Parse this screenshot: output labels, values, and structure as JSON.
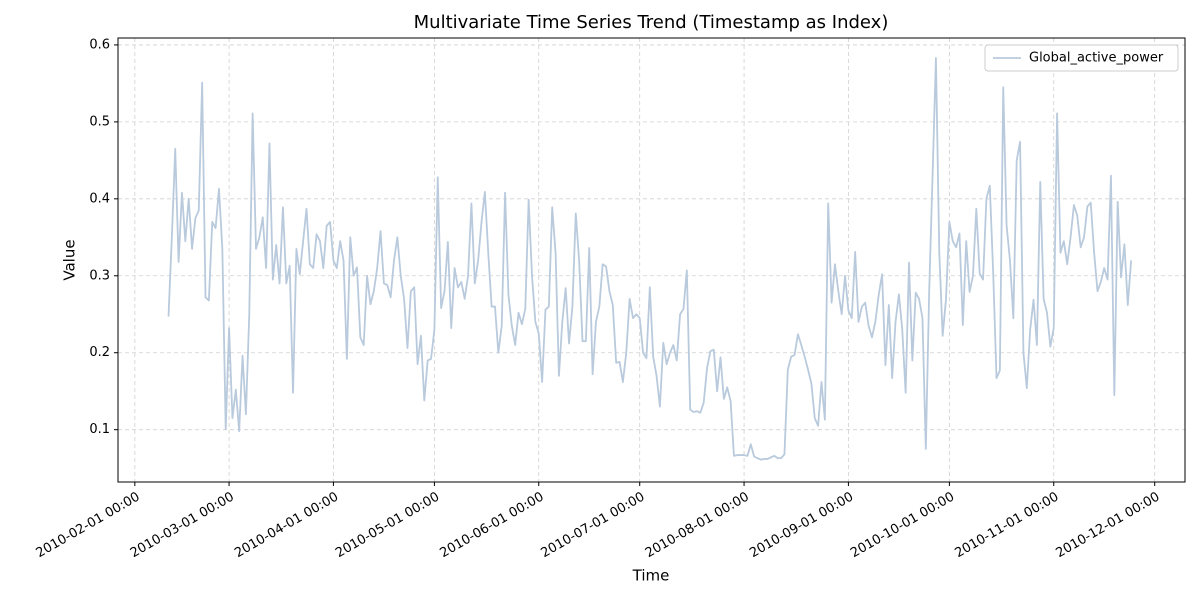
{
  "chart_data": {
    "type": "line",
    "title": "Multivariate Time Series Trend (Timestamp as Index)",
    "x_label": "Time",
    "y_label": "Value",
    "x": [
      "2010-02-11",
      "2010-02-12",
      "2010-02-13",
      "2010-02-14",
      "2010-02-15",
      "2010-02-16",
      "2010-02-17",
      "2010-02-18",
      "2010-02-19",
      "2010-02-20",
      "2010-02-21",
      "2010-02-22",
      "2010-02-23",
      "2010-02-24",
      "2010-02-25",
      "2010-02-26",
      "2010-02-27",
      "2010-02-28",
      "2010-03-01",
      "2010-03-02",
      "2010-03-03",
      "2010-03-04",
      "2010-03-05",
      "2010-03-06",
      "2010-03-07",
      "2010-03-08",
      "2010-03-09",
      "2010-03-10",
      "2010-03-11",
      "2010-03-12",
      "2010-03-13",
      "2010-03-14",
      "2010-03-15",
      "2010-03-16",
      "2010-03-17",
      "2010-03-18",
      "2010-03-19",
      "2010-03-20",
      "2010-03-21",
      "2010-03-22",
      "2010-03-23",
      "2010-03-24",
      "2010-03-25",
      "2010-03-26",
      "2010-03-27",
      "2010-03-28",
      "2010-03-29",
      "2010-03-30",
      "2010-03-31",
      "2010-04-01",
      "2010-04-02",
      "2010-04-03",
      "2010-04-04",
      "2010-04-05",
      "2010-04-06",
      "2010-04-07",
      "2010-04-08",
      "2010-04-09",
      "2010-04-10",
      "2010-04-11",
      "2010-04-12",
      "2010-04-13",
      "2010-04-14",
      "2010-04-15",
      "2010-04-16",
      "2010-04-17",
      "2010-04-18",
      "2010-04-19",
      "2010-04-20",
      "2010-04-21",
      "2010-04-22",
      "2010-04-23",
      "2010-04-24",
      "2010-04-25",
      "2010-04-26",
      "2010-04-27",
      "2010-04-28",
      "2010-04-29",
      "2010-04-30",
      "2010-05-01",
      "2010-05-02",
      "2010-05-03",
      "2010-05-04",
      "2010-05-05",
      "2010-05-06",
      "2010-05-07",
      "2010-05-08",
      "2010-05-09",
      "2010-05-10",
      "2010-05-11",
      "2010-05-12",
      "2010-05-13",
      "2010-05-14",
      "2010-05-15",
      "2010-05-16",
      "2010-05-17",
      "2010-05-18",
      "2010-05-19",
      "2010-05-20",
      "2010-05-21",
      "2010-05-22",
      "2010-05-23",
      "2010-05-24",
      "2010-05-25",
      "2010-05-26",
      "2010-05-27",
      "2010-05-28",
      "2010-05-29",
      "2010-05-30",
      "2010-05-31",
      "2010-06-01",
      "2010-06-02",
      "2010-06-03",
      "2010-06-04",
      "2010-06-05",
      "2010-06-06",
      "2010-06-07",
      "2010-06-08",
      "2010-06-09",
      "2010-06-10",
      "2010-06-11",
      "2010-06-12",
      "2010-06-13",
      "2010-06-14",
      "2010-06-15",
      "2010-06-16",
      "2010-06-17",
      "2010-06-18",
      "2010-06-19",
      "2010-06-20",
      "2010-06-21",
      "2010-06-22",
      "2010-06-23",
      "2010-06-24",
      "2010-06-25",
      "2010-06-26",
      "2010-06-27",
      "2010-06-28",
      "2010-06-29",
      "2010-06-30",
      "2010-07-01",
      "2010-07-02",
      "2010-07-03",
      "2010-07-04",
      "2010-07-05",
      "2010-07-06",
      "2010-07-07",
      "2010-07-08",
      "2010-07-09",
      "2010-07-10",
      "2010-07-11",
      "2010-07-12",
      "2010-07-13",
      "2010-07-14",
      "2010-07-15",
      "2010-07-16",
      "2010-07-17",
      "2010-07-18",
      "2010-07-19",
      "2010-07-20",
      "2010-07-21",
      "2010-07-22",
      "2010-07-23",
      "2010-07-24",
      "2010-07-25",
      "2010-07-26",
      "2010-07-27",
      "2010-07-28",
      "2010-07-29",
      "2010-07-30",
      "2010-07-31",
      "2010-08-01",
      "2010-08-02",
      "2010-08-03",
      "2010-08-04",
      "2010-08-05",
      "2010-08-06",
      "2010-08-07",
      "2010-08-08",
      "2010-08-09",
      "2010-08-10",
      "2010-08-11",
      "2010-08-12",
      "2010-08-13",
      "2010-08-14",
      "2010-08-15",
      "2010-08-16",
      "2010-08-17",
      "2010-08-18",
      "2010-08-19",
      "2010-08-20",
      "2010-08-21",
      "2010-08-22",
      "2010-08-23",
      "2010-08-24",
      "2010-08-25",
      "2010-08-26",
      "2010-08-27",
      "2010-08-28",
      "2010-08-29",
      "2010-08-30",
      "2010-08-31",
      "2010-09-01",
      "2010-09-02",
      "2010-09-03",
      "2010-09-04",
      "2010-09-05",
      "2010-09-06",
      "2010-09-07",
      "2010-09-08",
      "2010-09-09",
      "2010-09-10",
      "2010-09-11",
      "2010-09-12",
      "2010-09-13",
      "2010-09-14",
      "2010-09-15",
      "2010-09-16",
      "2010-09-17",
      "2010-09-18",
      "2010-09-19",
      "2010-09-20",
      "2010-09-21",
      "2010-09-22",
      "2010-09-23",
      "2010-09-24",
      "2010-09-25",
      "2010-09-26",
      "2010-09-27",
      "2010-09-28",
      "2010-09-29",
      "2010-09-30",
      "2010-10-01",
      "2010-10-02",
      "2010-10-03",
      "2010-10-04",
      "2010-10-05",
      "2010-10-06",
      "2010-10-07",
      "2010-10-08",
      "2010-10-09",
      "2010-10-10",
      "2010-10-11",
      "2010-10-12",
      "2010-10-13",
      "2010-10-14",
      "2010-10-15",
      "2010-10-16",
      "2010-10-17",
      "2010-10-18",
      "2010-10-19",
      "2010-10-20",
      "2010-10-21",
      "2010-10-22",
      "2010-10-23",
      "2010-10-24",
      "2010-10-25",
      "2010-10-26",
      "2010-10-27",
      "2010-10-28",
      "2010-10-29",
      "2010-10-30",
      "2010-10-31",
      "2010-11-01",
      "2010-11-02",
      "2010-11-03",
      "2010-11-04",
      "2010-11-05",
      "2010-11-06",
      "2010-11-07",
      "2010-11-08",
      "2010-11-09",
      "2010-11-10",
      "2010-11-11",
      "2010-11-12",
      "2010-11-13",
      "2010-11-14",
      "2010-11-15",
      "2010-11-16",
      "2010-11-17",
      "2010-11-18",
      "2010-11-19",
      "2010-11-20",
      "2010-11-21",
      "2010-11-22",
      "2010-11-23",
      "2010-11-24"
    ],
    "series": [
      {
        "name": "Global_active_power",
        "color": "#b9cadd",
        "values": [
          0.247,
          0.35,
          0.465,
          0.318,
          0.408,
          0.345,
          0.4,
          0.335,
          0.375,
          0.385,
          0.551,
          0.272,
          0.268,
          0.37,
          0.362,
          0.413,
          0.335,
          0.101,
          0.232,
          0.115,
          0.152,
          0.098,
          0.196,
          0.12,
          0.25,
          0.511,
          0.335,
          0.35,
          0.376,
          0.31,
          0.472,
          0.295,
          0.34,
          0.29,
          0.389,
          0.29,
          0.313,
          0.148,
          0.335,
          0.302,
          0.345,
          0.387,
          0.315,
          0.31,
          0.354,
          0.345,
          0.31,
          0.365,
          0.37,
          0.32,
          0.31,
          0.345,
          0.32,
          0.192,
          0.35,
          0.3,
          0.311,
          0.22,
          0.21,
          0.3,
          0.263,
          0.28,
          0.31,
          0.358,
          0.29,
          0.288,
          0.272,
          0.32,
          0.35,
          0.3,
          0.27,
          0.206,
          0.28,
          0.285,
          0.185,
          0.222,
          0.138,
          0.19,
          0.192,
          0.23,
          0.428,
          0.258,
          0.28,
          0.344,
          0.232,
          0.31,
          0.285,
          0.292,
          0.27,
          0.3,
          0.394,
          0.29,
          0.32,
          0.37,
          0.409,
          0.33,
          0.26,
          0.26,
          0.2,
          0.235,
          0.408,
          0.275,
          0.235,
          0.21,
          0.252,
          0.237,
          0.257,
          0.399,
          0.3,
          0.24,
          0.225,
          0.162,
          0.256,
          0.26,
          0.389,
          0.33,
          0.17,
          0.24,
          0.284,
          0.212,
          0.26,
          0.381,
          0.32,
          0.215,
          0.215,
          0.336,
          0.172,
          0.24,
          0.26,
          0.315,
          0.312,
          0.28,
          0.262,
          0.187,
          0.188,
          0.162,
          0.2,
          0.27,
          0.245,
          0.25,
          0.245,
          0.2,
          0.193,
          0.285,
          0.195,
          0.17,
          0.13,
          0.213,
          0.185,
          0.2,
          0.21,
          0.19,
          0.25,
          0.257,
          0.307,
          0.126,
          0.123,
          0.124,
          0.122,
          0.135,
          0.18,
          0.202,
          0.204,
          0.15,
          0.194,
          0.14,
          0.155,
          0.137,
          0.066,
          0.067,
          0.067,
          0.067,
          0.066,
          0.081,
          0.065,
          0.063,
          0.061,
          0.062,
          0.062,
          0.064,
          0.066,
          0.063,
          0.063,
          0.068,
          0.178,
          0.195,
          0.197,
          0.224,
          0.21,
          0.195,
          0.178,
          0.16,
          0.115,
          0.105,
          0.162,
          0.113,
          0.394,
          0.265,
          0.315,
          0.28,
          0.25,
          0.3,
          0.255,
          0.245,
          0.331,
          0.24,
          0.26,
          0.265,
          0.235,
          0.22,
          0.24,
          0.275,
          0.302,
          0.184,
          0.262,
          0.167,
          0.24,
          0.276,
          0.23,
          0.148,
          0.317,
          0.19,
          0.278,
          0.27,
          0.245,
          0.075,
          0.28,
          0.43,
          0.583,
          0.33,
          0.222,
          0.27,
          0.37,
          0.345,
          0.337,
          0.355,
          0.236,
          0.345,
          0.279,
          0.3,
          0.387,
          0.303,
          0.295,
          0.4,
          0.417,
          0.306,
          0.167,
          0.177,
          0.545,
          0.365,
          0.32,
          0.245,
          0.45,
          0.474,
          0.2,
          0.154,
          0.23,
          0.269,
          0.21,
          0.422,
          0.27,
          0.252,
          0.208,
          0.232,
          0.511,
          0.33,
          0.345,
          0.315,
          0.35,
          0.392,
          0.378,
          0.337,
          0.35,
          0.39,
          0.395,
          0.33,
          0.28,
          0.292,
          0.31,
          0.295,
          0.43,
          0.145,
          0.396,
          0.298,
          0.341,
          0.262,
          0.32
        ]
      }
    ],
    "xlim": [
      "2010-01-27",
      "2010-12-10"
    ],
    "xticks": [
      {
        "value": "2010-02-01",
        "label": "2010-02-01 00:00"
      },
      {
        "value": "2010-03-01",
        "label": "2010-03-01 00:00"
      },
      {
        "value": "2010-04-01",
        "label": "2010-04-01 00:00"
      },
      {
        "value": "2010-05-01",
        "label": "2010-05-01 00:00"
      },
      {
        "value": "2010-06-01",
        "label": "2010-06-01 00:00"
      },
      {
        "value": "2010-07-01",
        "label": "2010-07-01 00:00"
      },
      {
        "value": "2010-08-01",
        "label": "2010-08-01 00:00"
      },
      {
        "value": "2010-09-01",
        "label": "2010-09-01 00:00"
      },
      {
        "value": "2010-10-01",
        "label": "2010-10-01 00:00"
      },
      {
        "value": "2010-11-01",
        "label": "2010-11-01 00:00"
      },
      {
        "value": "2010-12-01",
        "label": "2010-12-01 00:00"
      }
    ],
    "ylim": [
      0.032,
      0.609
    ],
    "yticks": [
      0.1,
      0.2,
      0.3,
      0.4,
      0.5,
      0.6
    ],
    "grid": true,
    "legend": "upper right"
  }
}
